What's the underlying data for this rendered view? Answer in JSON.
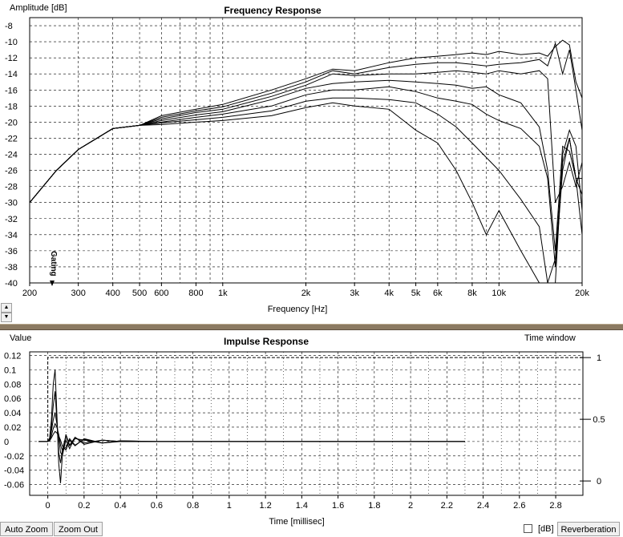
{
  "freq_panel": {
    "ylabel": "Amplitude [dB]",
    "title": "Frequency Response",
    "xlabel": "Frequency [Hz]",
    "gating_label": "Gating"
  },
  "impulse_panel": {
    "ylabel": "Value",
    "title": "Impulse Response",
    "xlabel": "Time [millisec]",
    "window_label": "Time window"
  },
  "toolbar": {
    "auto_zoom": "Auto Zoom",
    "zoom_out": "Zoom Out",
    "db_label": "[dB]",
    "reverberation": "Reverberation"
  },
  "chart_data": [
    {
      "type": "line",
      "title": "Frequency Response",
      "xlabel": "Frequency [Hz]",
      "ylabel": "Amplitude [dB]",
      "xscale": "log",
      "xlim": [
        200,
        20000
      ],
      "ylim": [
        -40,
        -7
      ],
      "grid": true,
      "x_ticks": [
        200,
        300,
        400,
        500,
        600,
        800,
        1000,
        2000,
        3000,
        4000,
        5000,
        6000,
        8000,
        10000,
        20000
      ],
      "x_tick_labels": [
        "200",
        "300",
        "400",
        "500",
        "600",
        "800",
        "1k",
        "2k",
        "3k",
        "4k",
        "5k",
        "6k",
        "8k",
        "10k",
        "20k"
      ],
      "y_ticks": [
        -8,
        -10,
        -12,
        -14,
        -16,
        -18,
        -20,
        -22,
        -24,
        -26,
        -28,
        -30,
        -32,
        -34,
        -36,
        -38,
        -40
      ],
      "x": [
        200,
        250,
        300,
        400,
        500,
        600,
        800,
        1000,
        1500,
        2000,
        2500,
        3000,
        4000,
        5000,
        6000,
        7000,
        8000,
        9000,
        10000,
        12000,
        14000,
        15000,
        16000,
        17000,
        18000,
        19000,
        20000
      ],
      "series": [
        {
          "values": [
            -30,
            -26,
            -23.4,
            -20.8,
            -20.4,
            -19.2,
            -18.4,
            -17.8,
            -16,
            -14.6,
            -13.4,
            -13.6,
            -12.6,
            -12,
            -11.8,
            -11.6,
            -11.4,
            -11.6,
            -11.2,
            -11.6,
            -11.4,
            -11.8,
            -10.6,
            -9.8,
            -10.4,
            -15,
            -17
          ]
        },
        {
          "values": [
            -30,
            -26,
            -23.4,
            -20.8,
            -20.4,
            -19.4,
            -18.6,
            -18.1,
            -16.4,
            -15,
            -13.6,
            -14,
            -13.2,
            -12.8,
            -12.6,
            -12.6,
            -12.8,
            -13,
            -12.8,
            -12.6,
            -12.2,
            -13,
            -10.2,
            -14,
            -11,
            -16,
            -21
          ]
        },
        {
          "values": [
            -30,
            -26,
            -23.4,
            -20.8,
            -20.4,
            -19.6,
            -18.8,
            -18.4,
            -16.8,
            -15.4,
            -14,
            -14.2,
            -14,
            -14,
            -13.8,
            -13.6,
            -13.8,
            -14,
            -13.6,
            -14,
            -13.6,
            -14.6,
            -30,
            -28,
            -25,
            -28,
            -25
          ]
        },
        {
          "values": [
            -30,
            -26,
            -23.4,
            -20.8,
            -20.4,
            -19.8,
            -19.1,
            -18.7,
            -17.2,
            -15.8,
            -15.2,
            -15,
            -14.8,
            -15,
            -15.2,
            -15.4,
            -15.8,
            -15.6,
            -16.6,
            -17.6,
            -20.6,
            -26,
            -36,
            -23,
            -23.6,
            -27,
            -27
          ]
        },
        {
          "values": [
            -30,
            -26,
            -23.4,
            -20.8,
            -20.4,
            -20,
            -19.4,
            -19,
            -18,
            -16.6,
            -16,
            -16,
            -15.6,
            -16.2,
            -17,
            -17.4,
            -17.8,
            -19,
            -19.8,
            -20.8,
            -23,
            -27,
            -38,
            -26,
            -22,
            -27,
            -29
          ]
        },
        {
          "values": [
            -30,
            -26,
            -23.4,
            -20.8,
            -20.4,
            -20.1,
            -19.7,
            -19.4,
            -18.6,
            -17.4,
            -17,
            -17,
            -17.2,
            -17.6,
            -19,
            -20.6,
            -22.6,
            -24.4,
            -26,
            -29.6,
            -33,
            -40,
            -40,
            -24,
            -21,
            -23,
            -31
          ]
        },
        {
          "values": [
            -30,
            -26,
            -23.4,
            -20.8,
            -20.4,
            -20.3,
            -20,
            -19.8,
            -19.2,
            -18.2,
            -17.6,
            -18,
            -18.4,
            -21,
            -22.6,
            -26,
            -30,
            -34,
            -31,
            -36,
            -40,
            -40,
            -37,
            -25,
            -22,
            -27,
            -34
          ]
        }
      ]
    },
    {
      "type": "line",
      "title": "Impulse Response",
      "xlabel": "Time [millisec]",
      "ylabel": "Value",
      "xlim": [
        -0.1,
        2.95
      ],
      "ylim": [
        -0.075,
        0.125
      ],
      "grid": true,
      "x_ticks": [
        0,
        0.2,
        0.4,
        0.6,
        0.8,
        1,
        1.2,
        1.4,
        1.6,
        1.8,
        2,
        2.2,
        2.4,
        2.6,
        2.8
      ],
      "x_tick_labels": [
        "0",
        "0.2",
        "0.4",
        "0.6",
        "0.8",
        "1",
        "1.2",
        "1.4",
        "1.6",
        "1.8",
        "2",
        "2.2",
        "2.4",
        "2.6",
        "2.8"
      ],
      "y_ticks": [
        0.12,
        0.1,
        0.08,
        0.06,
        0.04,
        0.02,
        0,
        -0.02,
        -0.04,
        -0.06
      ],
      "y_tick_labels": [
        "0.12",
        "0.1",
        "0.08",
        "0.06",
        "0.04",
        "0.02",
        "0",
        "-0.02",
        "-0.04",
        "-0.06"
      ],
      "x": [
        -0.05,
        0,
        0.01,
        0.02,
        0.03,
        0.04,
        0.05,
        0.06,
        0.07,
        0.08,
        0.1,
        0.12,
        0.15,
        0.2,
        0.3,
        0.4,
        0.6,
        0.8,
        1.0,
        1.4,
        2.0,
        2.3
      ],
      "series": [
        {
          "values": [
            0,
            0,
            0.005,
            0.03,
            0.08,
            0.1,
            0.04,
            -0.03,
            -0.058,
            -0.02,
            0.01,
            -0.005,
            0.006,
            -0.002,
            0.002,
            0,
            0,
            0,
            0,
            0,
            0,
            0
          ]
        },
        {
          "values": [
            0,
            0,
            0.004,
            0.02,
            0.05,
            0.07,
            0.03,
            -0.015,
            -0.03,
            -0.012,
            0.008,
            -0.006,
            0.004,
            0.002,
            -0.002,
            0.001,
            0,
            0,
            0,
            0,
            0,
            0
          ]
        },
        {
          "values": [
            0,
            0,
            0.003,
            0.014,
            0.03,
            0.04,
            0.025,
            0.005,
            -0.015,
            -0.02,
            0.002,
            -0.01,
            0.006,
            -0.004,
            0.002,
            0,
            0,
            0,
            0,
            0,
            0,
            0
          ]
        },
        {
          "values": [
            0,
            0,
            0.002,
            0.008,
            0.018,
            0.025,
            0.02,
            0.01,
            -0.005,
            -0.012,
            -0.008,
            0.004,
            -0.005,
            0.003,
            -0.002,
            0,
            0,
            0,
            0,
            0,
            0,
            0
          ]
        },
        {
          "values": [
            0,
            0,
            0.001,
            0.005,
            0.01,
            0.014,
            0.012,
            0.008,
            0.002,
            -0.006,
            -0.012,
            0.002,
            -0.006,
            0.004,
            -0.002,
            0.001,
            0,
            0,
            0,
            0,
            0,
            0
          ]
        }
      ],
      "time_window": {
        "y_ticks": [
          1,
          0.5,
          0
        ],
        "y_tick_labels": [
          "1",
          "0.5",
          "0"
        ],
        "start": 0,
        "level": 1
      }
    }
  ]
}
